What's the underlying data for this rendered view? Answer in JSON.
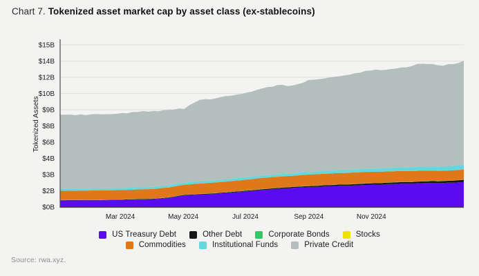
{
  "title": {
    "prefix": "Chart 7.",
    "main": "Tokenized asset market cap by asset class (ex-stablecoins)"
  },
  "source": "Source: rwa.xyz.",
  "colors": {
    "page_background": "#f3f3f2",
    "gridline": "#dfdfde",
    "axis_spine": "#4c4c4c",
    "tick_label": "#1a1a1a",
    "axis_title": "#222222",
    "source_text": "#8f8f8f"
  },
  "chart_data": {
    "type": "area",
    "stacked": true,
    "title": "Tokenized asset market cap by asset class (ex-stablecoins)",
    "xlabel": "",
    "ylabel": "Tokenized Assets",
    "ylim": [
      0,
      15
    ],
    "y_unit": "billion USD",
    "grid": true,
    "legend_position": "bottom",
    "y_ticks": [
      {
        "value": 0,
        "label": "$0B"
      },
      {
        "value": 1.5,
        "label": "$2B"
      },
      {
        "value": 3,
        "label": "$3B"
      },
      {
        "value": 4.5,
        "label": "$4B"
      },
      {
        "value": 6,
        "label": "$6B"
      },
      {
        "value": 7.5,
        "label": "$8B"
      },
      {
        "value": 9,
        "label": "$9B"
      },
      {
        "value": 10.5,
        "label": "$10B"
      },
      {
        "value": 12,
        "label": "$12B"
      },
      {
        "value": 13.5,
        "label": "$14B"
      },
      {
        "value": 15,
        "label": "$15B"
      }
    ],
    "x_ticks": [
      {
        "pos": 0.149,
        "label": "Mar 2024"
      },
      {
        "pos": 0.305,
        "label": "May 2024"
      },
      {
        "pos": 0.459,
        "label": "Jul 2024"
      },
      {
        "pos": 0.616,
        "label": "Sep 2024"
      },
      {
        "pos": 0.771,
        "label": "Nov 2024"
      }
    ],
    "x_range_note": "Jan 2024 through late 2024, 27 evenly spaced samples",
    "series": [
      {
        "name": "US Treasury Debt",
        "color": "#5a0bef",
        "values": [
          0.6,
          0.61,
          0.62,
          0.63,
          0.66,
          0.69,
          0.72,
          0.85,
          1.08,
          1.15,
          1.23,
          1.33,
          1.45,
          1.57,
          1.68,
          1.76,
          1.84,
          1.9,
          1.95,
          2.0,
          2.05,
          2.1,
          2.14,
          2.18,
          2.22,
          2.24,
          2.3
        ]
      },
      {
        "name": "Other Debt",
        "color": "#161616",
        "values": [
          0.03,
          0.03,
          0.03,
          0.03,
          0.03,
          0.04,
          0.04,
          0.04,
          0.04,
          0.05,
          0.05,
          0.06,
          0.06,
          0.07,
          0.08,
          0.09,
          0.1,
          0.11,
          0.12,
          0.12,
          0.13,
          0.14,
          0.15,
          0.16,
          0.17,
          0.18,
          0.2
        ]
      },
      {
        "name": "Corporate Bonds",
        "color": "#31c966",
        "values": [
          0.015,
          0.015,
          0.015,
          0.015,
          0.015,
          0.015,
          0.015,
          0.015,
          0.015,
          0.015,
          0.015,
          0.015,
          0.015,
          0.015,
          0.015,
          0.015,
          0.015,
          0.015,
          0.015,
          0.015,
          0.015,
          0.015,
          0.015,
          0.015,
          0.015,
          0.015,
          0.015
        ]
      },
      {
        "name": "Stocks",
        "color": "#ede407",
        "values": [
          0.008,
          0.008,
          0.008,
          0.008,
          0.008,
          0.008,
          0.008,
          0.008,
          0.008,
          0.008,
          0.008,
          0.008,
          0.008,
          0.008,
          0.008,
          0.008,
          0.008,
          0.008,
          0.008,
          0.008,
          0.008,
          0.008,
          0.008,
          0.008,
          0.008,
          0.008,
          0.008
        ]
      },
      {
        "name": "Commodities",
        "color": "#e0781b",
        "values": [
          0.85,
          0.84,
          0.85,
          0.86,
          0.86,
          0.87,
          0.88,
          0.9,
          0.92,
          0.95,
          0.97,
          0.98,
          1.0,
          1.02,
          1.03,
          1.02,
          1.04,
          1.05,
          1.05,
          1.06,
          1.05,
          1.02,
          1.0,
          0.98,
          0.95,
          0.93,
          0.92
        ]
      },
      {
        "name": "Institutional Funds",
        "color": "#65d7dc",
        "values": [
          0.22,
          0.2,
          0.19,
          0.19,
          0.19,
          0.19,
          0.2,
          0.2,
          0.2,
          0.2,
          0.21,
          0.21,
          0.22,
          0.22,
          0.22,
          0.23,
          0.24,
          0.25,
          0.26,
          0.28,
          0.3,
          0.32,
          0.35,
          0.38,
          0.4,
          0.42,
          0.45
        ]
      },
      {
        "name": "Private Credit",
        "color": "#b3bfbc",
        "values": [
          6.78,
          6.8,
          6.84,
          6.88,
          6.89,
          6.99,
          6.99,
          6.99,
          6.84,
          7.53,
          7.57,
          7.7,
          7.85,
          8.0,
          8.25,
          8.1,
          8.5,
          8.57,
          8.7,
          8.87,
          9.05,
          9.15,
          9.24,
          9.43,
          9.44,
          9.36,
          9.56
        ]
      }
    ],
    "legend_rows": [
      [
        "US Treasury Debt",
        "Other Debt",
        "Corporate Bonds",
        "Stocks"
      ],
      [
        "Commodities",
        "Institutional Funds",
        "Private Credit"
      ]
    ]
  }
}
